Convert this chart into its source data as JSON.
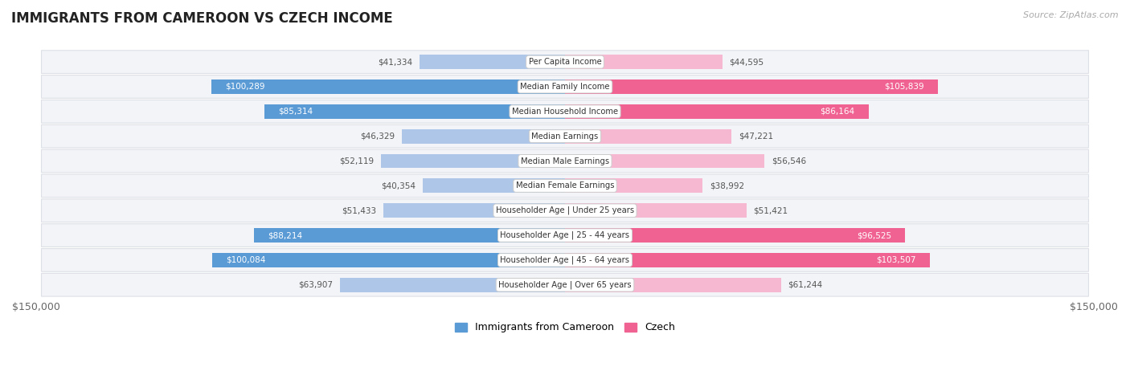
{
  "title": "IMMIGRANTS FROM CAMEROON VS CZECH INCOME",
  "source": "Source: ZipAtlas.com",
  "categories": [
    "Per Capita Income",
    "Median Family Income",
    "Median Household Income",
    "Median Earnings",
    "Median Male Earnings",
    "Median Female Earnings",
    "Householder Age | Under 25 years",
    "Householder Age | 25 - 44 years",
    "Householder Age | 45 - 64 years",
    "Householder Age | Over 65 years"
  ],
  "cameroon_values": [
    41334,
    100289,
    85314,
    46329,
    52119,
    40354,
    51433,
    88214,
    100084,
    63907
  ],
  "czech_values": [
    44595,
    105839,
    86164,
    47221,
    56546,
    38992,
    51421,
    96525,
    103507,
    61244
  ],
  "max_val": 150000,
  "cameroon_color_light": "#aec6e8",
  "cameroon_color_dark": "#5b9bd5",
  "czech_color_light": "#f5b8d0",
  "czech_color_dark": "#f06292",
  "background_color": "#ffffff",
  "row_bg_color": "#f2f4f7",
  "row_border_color": "#dde0e6",
  "threshold_dark_label": 75000,
  "bar_height": 0.58,
  "figsize": [
    14.06,
    4.67
  ],
  "dpi": 100
}
